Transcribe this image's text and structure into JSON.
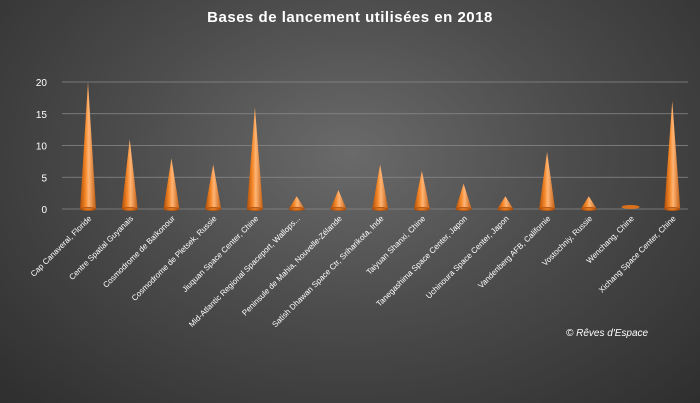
{
  "chart_data": {
    "type": "bar",
    "title": "Bases de lancement  utilisées  en 2018",
    "categories": [
      "Cap Canaveral, Floride",
      "Centre Spatial Guyanais",
      "Cosmodrome de Baïkonour",
      "Cosmodrome de Pletsek, Russie",
      "Jiuquan Space Center, Chine",
      "Mid-Atlantic Regional Spaceport, Wallops...",
      "Peninsule de Mahia, Nouvelle-Zélande",
      "Satish Dhawan Space Ctr, Sriharikota, Inde",
      "Taiyuan Shanxi, Chine",
      "Tanegashima Space Center, Japon",
      "Uchinoura Space Center, Japon",
      "Vandenberg AFB, Californie",
      "Vostochniy, Russie",
      "Wenchang, Chine",
      "Xichang Space Center, Chine"
    ],
    "values": [
      20,
      11,
      8,
      7,
      16,
      2,
      3,
      7,
      6,
      4,
      2,
      9,
      2,
      0,
      17
    ],
    "ylim": [
      0,
      20
    ],
    "yticks": [
      "0",
      "5",
      "10",
      "15",
      "20"
    ],
    "grid": true,
    "legend": "none",
    "colors": {
      "cone_light": "#ffb070",
      "cone_mid": "#f07a1a",
      "cone_dark": "#b04e08",
      "grid": "#8a8a8a"
    }
  },
  "copyright": "© Rêves d'Espace"
}
